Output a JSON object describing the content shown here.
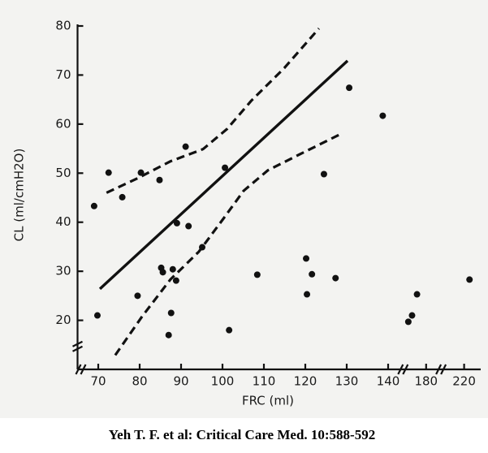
{
  "chart_data": {
    "type": "scatter",
    "xlabel": "FRC (ml)",
    "ylabel": "CL (ml/cmH2O)",
    "xlim": [
      65,
      224
    ],
    "ylim": [
      10,
      80
    ],
    "xbreaks": [
      [
        143,
        175
      ],
      [
        183,
        215
      ]
    ],
    "xticks": [
      70,
      80,
      90,
      100,
      110,
      120,
      130,
      140,
      180,
      220
    ],
    "yticks": [
      20,
      30,
      40,
      50,
      60,
      70,
      80
    ],
    "series": [
      {
        "style": "points",
        "color": "#111111",
        "x": [
          69.0,
          69.8,
          72.5,
          75.8,
          80.3,
          79.5,
          84.8,
          85.2,
          85.6,
          87.0,
          87.6,
          88.0,
          88.8,
          89.0,
          91.1,
          91.8,
          95.1,
          100.6,
          101.6,
          108.4,
          120.2,
          120.4,
          121.6,
          124.5,
          127.3,
          130.6,
          138.7,
          175.7,
          176.6,
          177.8,
          221.3
        ],
        "y": [
          43.3,
          21.0,
          50.1,
          45.1,
          50.1,
          25.0,
          48.6,
          30.7,
          29.8,
          17.0,
          21.5,
          30.4,
          28.1,
          39.8,
          55.4,
          39.2,
          34.9,
          51.1,
          18.0,
          29.3,
          32.6,
          25.3,
          29.4,
          49.8,
          28.6,
          67.4,
          61.7,
          19.7,
          21.0,
          25.3,
          28.3
        ]
      },
      {
        "style": "solid",
        "color": "#111111",
        "x": [
          70.4,
          130.2
        ],
        "y": [
          26.4,
          72.9
        ]
      },
      {
        "style": "dashed",
        "color": "#111111",
        "x": [
          72.0,
          79.6,
          87.4,
          95.3,
          101.1,
          107.0,
          114.9,
          123.3
        ],
        "y": [
          46.0,
          49.0,
          52.4,
          54.9,
          59.0,
          64.8,
          71.4,
          79.5
        ]
      },
      {
        "style": "dashed",
        "color": "#111111",
        "x": [
          74.1,
          80.6,
          87.4,
          94.3,
          100.2,
          105.1,
          111.0,
          118.8,
          128.6
        ],
        "y": [
          12.9,
          20.8,
          28.3,
          34.0,
          40.7,
          46.4,
          50.6,
          53.9,
          58.0
        ]
      }
    ]
  },
  "caption": "Yeh T. F. et al: Critical Care Med. 10:588-592"
}
